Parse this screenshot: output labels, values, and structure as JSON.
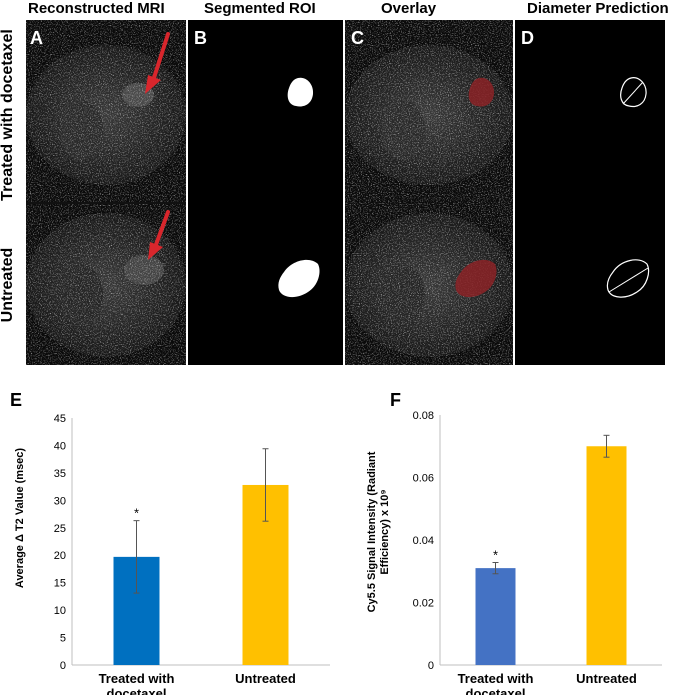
{
  "figure": {
    "column_headers": [
      "Reconstructed MRI",
      "Segmented ROI",
      "Overlay",
      "Diameter Prediction"
    ],
    "panel_letters": [
      "A",
      "B",
      "C",
      "D"
    ],
    "row_labels": [
      "Treated with docetaxel",
      "Untreated"
    ],
    "colors": {
      "arrow": "#d8262c",
      "overlay_tumor": "#8b2226",
      "bar_treated_E": "#0070c0",
      "bar_treated_F": "#4472c4",
      "bar_untreated": "#ffc000"
    }
  },
  "chart_data": [
    {
      "panel_letter": "E",
      "type": "bar",
      "title": "",
      "xlabel": "",
      "ylabel": "Average Δ T2 Value (msec)",
      "categories": [
        "Treated with docetaxel",
        "Untreated"
      ],
      "category_lines": [
        [
          "Treated with",
          "docetaxel"
        ],
        [
          "Untreated"
        ]
      ],
      "values": [
        19.7,
        32.8
      ],
      "errors": [
        6.6,
        6.6
      ],
      "significance": [
        "*",
        ""
      ],
      "ylim": [
        0,
        45
      ],
      "yticks": [
        0,
        5,
        10,
        15,
        20,
        25,
        30,
        35,
        40,
        45
      ],
      "ytick_labels": [
        "0",
        "5",
        "10",
        "15",
        "20",
        "25",
        "30",
        "35",
        "40",
        "45"
      ],
      "grid": false
    },
    {
      "panel_letter": "F",
      "type": "bar",
      "title": "",
      "xlabel": "",
      "ylabel_lines": [
        "Cy5.5 Signal Intensity (Radiant",
        "Efficiency) x 10⁹"
      ],
      "categories": [
        "Treated with docetaxel",
        "Untreated"
      ],
      "category_lines": [
        [
          "Treated with",
          "docetaxel"
        ],
        [
          "Untreated"
        ]
      ],
      "values": [
        0.031,
        0.07
      ],
      "errors": [
        0.0018,
        0.0035
      ],
      "significance": [
        "*",
        ""
      ],
      "ylim": [
        0,
        0.08
      ],
      "yticks": [
        0,
        0.02,
        0.04,
        0.06,
        0.08
      ],
      "ytick_labels": [
        "0",
        "0.02",
        "0.04",
        "0.06",
        "0.08"
      ],
      "grid": false
    }
  ]
}
